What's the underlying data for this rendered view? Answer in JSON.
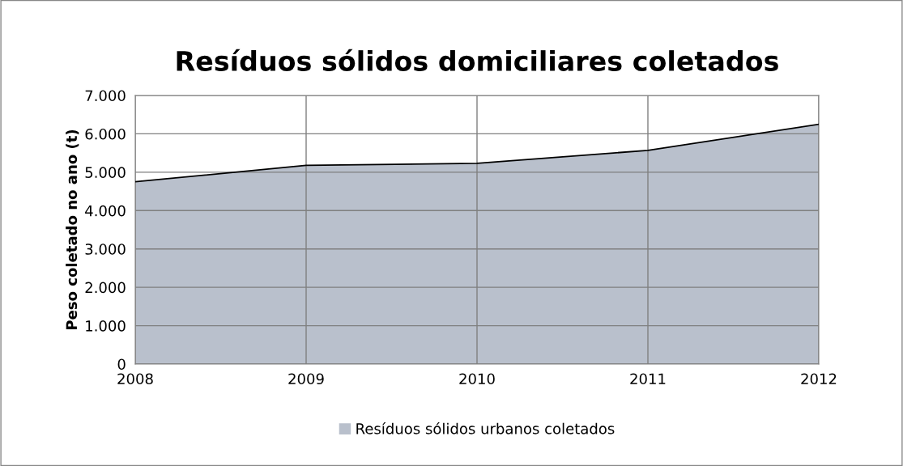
{
  "chart_data": {
    "type": "area",
    "title": "Resíduos sólidos domiciliares coletados",
    "ylabel": "Peso coletado no ano (t)",
    "categories": [
      "2008",
      "2009",
      "2010",
      "2011",
      "2012"
    ],
    "series": [
      {
        "name": "Resíduos sólidos urbanos coletados",
        "color": "#b9c0cc",
        "values": [
          4750,
          5180,
          5230,
          5570,
          6250
        ]
      }
    ],
    "ylim": [
      0,
      7000
    ],
    "yticks": [
      {
        "value": 0,
        "label": "0"
      },
      {
        "value": 1000,
        "label": "1.000"
      },
      {
        "value": 2000,
        "label": "2.000"
      },
      {
        "value": 3000,
        "label": "3.000"
      },
      {
        "value": 4000,
        "label": "4.000"
      },
      {
        "value": 5000,
        "label": "5.000"
      },
      {
        "value": 6000,
        "label": "6.000"
      },
      {
        "value": 7000,
        "label": "7.000"
      }
    ],
    "grid": true,
    "legend": "bottom"
  }
}
